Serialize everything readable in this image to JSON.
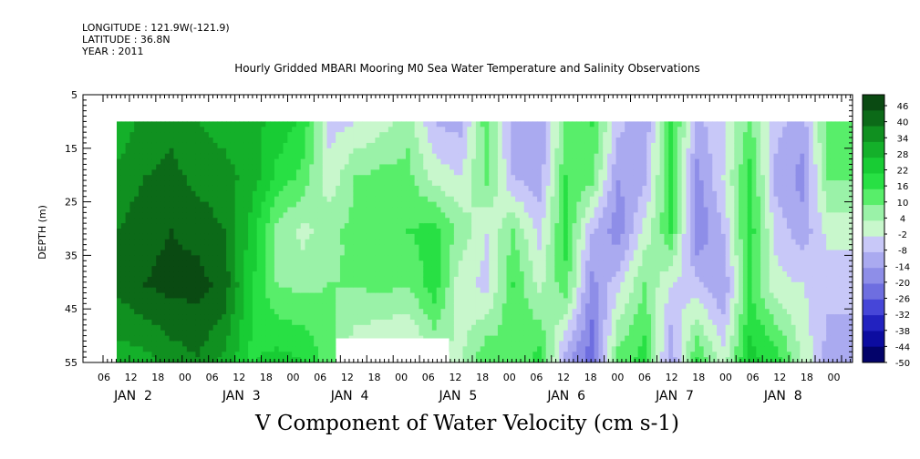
{
  "header": {
    "longitude": "LONGITUDE : 121.9W(-121.9)",
    "latitude": "LATITUDE : 36.8N",
    "year": "YEAR : 2011"
  },
  "chart_data": {
    "type": "heatmap",
    "title": "Hourly Gridded MBARI Mooring M0 Sea Water Temperature and Salinity Observations",
    "variable_title": "V Component of Water Velocity (cm s-1)",
    "ylabel": "DEPTH (m)",
    "ylim": [
      5,
      55
    ],
    "y_reversed": true,
    "yticks": [
      5,
      15,
      25,
      35,
      45,
      55
    ],
    "x_hour_labels": [
      "06",
      "12",
      "18",
      "00",
      "06",
      "12",
      "18",
      "00",
      "06",
      "12",
      "18",
      "00",
      "06",
      "12",
      "18",
      "00",
      "06",
      "12",
      "18",
      "00",
      "06",
      "12",
      "18",
      "00",
      "06",
      "12",
      "18",
      "00"
    ],
    "x_day_labels": [
      "JAN  2",
      "JAN  3",
      "JAN  4",
      "JAN  5",
      "JAN  6",
      "JAN  7",
      "JAN  8"
    ],
    "colorbar_levels": [
      46,
      40,
      34,
      28,
      22,
      16,
      10,
      4,
      -2,
      -8,
      -14,
      -20,
      -26,
      -32,
      -38,
      -44,
      -50
    ],
    "colorbar_colors": [
      "#0a4a12",
      "#0c6a18",
      "#109020",
      "#14b02a",
      "#18cc34",
      "#28e044",
      "#58ee6a",
      "#9af2a8",
      "#c8f7cc",
      "#c8c8f8",
      "#aaaaf0",
      "#8e8ee8",
      "#6e6ee0",
      "#4646d8",
      "#2222c0",
      "#0c0ca0",
      "#03036a"
    ],
    "depth_range_data": [
      10,
      55
    ],
    "columns": [
      {
        "t": 0,
        "d10": 24,
        "d20": 30,
        "d30": 34,
        "d40": 36,
        "d50": 28
      },
      {
        "t": 6,
        "d10": 30,
        "d20": 34,
        "d30": 38,
        "d40": 40,
        "d50": 30
      },
      {
        "t": 12,
        "d10": 32,
        "d20": 36,
        "d30": 40,
        "d40": 42,
        "d50": 34
      },
      {
        "t": 18,
        "d10": 28,
        "d20": 32,
        "d30": 38,
        "d40": 42,
        "d50": 36
      },
      {
        "t": 24,
        "d10": 26,
        "d20": 30,
        "d30": 34,
        "d40": 38,
        "d50": 30
      },
      {
        "t": 30,
        "d10": 24,
        "d20": 26,
        "d30": 20,
        "d40": 18,
        "d50": 16
      },
      {
        "t": 36,
        "d10": 20,
        "d20": 14,
        "d30": 2,
        "d40": 4,
        "d50": 14
      },
      {
        "t": 42,
        "d10": 14,
        "d20": 8,
        "d30": -4,
        "d40": 2,
        "d50": 12
      },
      {
        "t": 48,
        "d10": -10,
        "d20": -6,
        "d30": 2,
        "d40": 4,
        "d50": 6
      },
      {
        "t": 54,
        "d10": -8,
        "d20": 4,
        "d30": 6,
        "d40": 4,
        "d50": -4
      },
      {
        "t": 60,
        "d10": -4,
        "d20": 6,
        "d30": 8,
        "d40": 6,
        "d50": -6
      },
      {
        "t": 66,
        "d10": 2,
        "d20": 6,
        "d30": 10,
        "d40": 4,
        "d50": -8
      },
      {
        "t": 72,
        "d10": -14,
        "d20": -4,
        "d30": 12,
        "d40": 14,
        "d50": 2
      },
      {
        "t": 78,
        "d10": -16,
        "d20": -8,
        "d30": 2,
        "d40": -6,
        "d50": -4
      },
      {
        "t": 84,
        "d10": 8,
        "d20": 6,
        "d30": -8,
        "d40": -10,
        "d50": 4
      },
      {
        "t": 90,
        "d10": -18,
        "d20": -14,
        "d30": 4,
        "d40": 10,
        "d50": 6
      },
      {
        "t": 96,
        "d10": -20,
        "d20": -18,
        "d30": -10,
        "d40": -4,
        "d50": 8
      },
      {
        "t": 102,
        "d10": 4,
        "d20": 10,
        "d30": 12,
        "d40": 8,
        "d50": -10
      },
      {
        "t": 108,
        "d10": 10,
        "d20": 6,
        "d30": -14,
        "d40": -22,
        "d50": -28
      },
      {
        "t": 114,
        "d10": -12,
        "d20": -20,
        "d30": -24,
        "d40": -10,
        "d50": 2
      },
      {
        "t": 120,
        "d10": -20,
        "d20": -16,
        "d30": -6,
        "d40": 4,
        "d50": 10
      },
      {
        "t": 126,
        "d10": 14,
        "d20": 12,
        "d30": 10,
        "d40": -8,
        "d50": -16
      },
      {
        "t": 132,
        "d10": -16,
        "d20": -22,
        "d30": -26,
        "d40": -12,
        "d50": 4
      },
      {
        "t": 138,
        "d10": -10,
        "d20": -8,
        "d30": -14,
        "d40": -20,
        "d50": -10
      },
      {
        "t": 144,
        "d10": 6,
        "d20": 12,
        "d30": 14,
        "d40": 10,
        "d50": 16
      },
      {
        "t": 150,
        "d10": -12,
        "d20": -16,
        "d30": -10,
        "d40": -6,
        "d50": 8
      },
      {
        "t": 156,
        "d10": -18,
        "d20": -22,
        "d30": -18,
        "d40": -8,
        "d50": -4
      },
      {
        "t": 162,
        "d10": 8,
        "d20": 4,
        "d30": -6,
        "d40": -12,
        "d50": -16
      }
    ]
  }
}
